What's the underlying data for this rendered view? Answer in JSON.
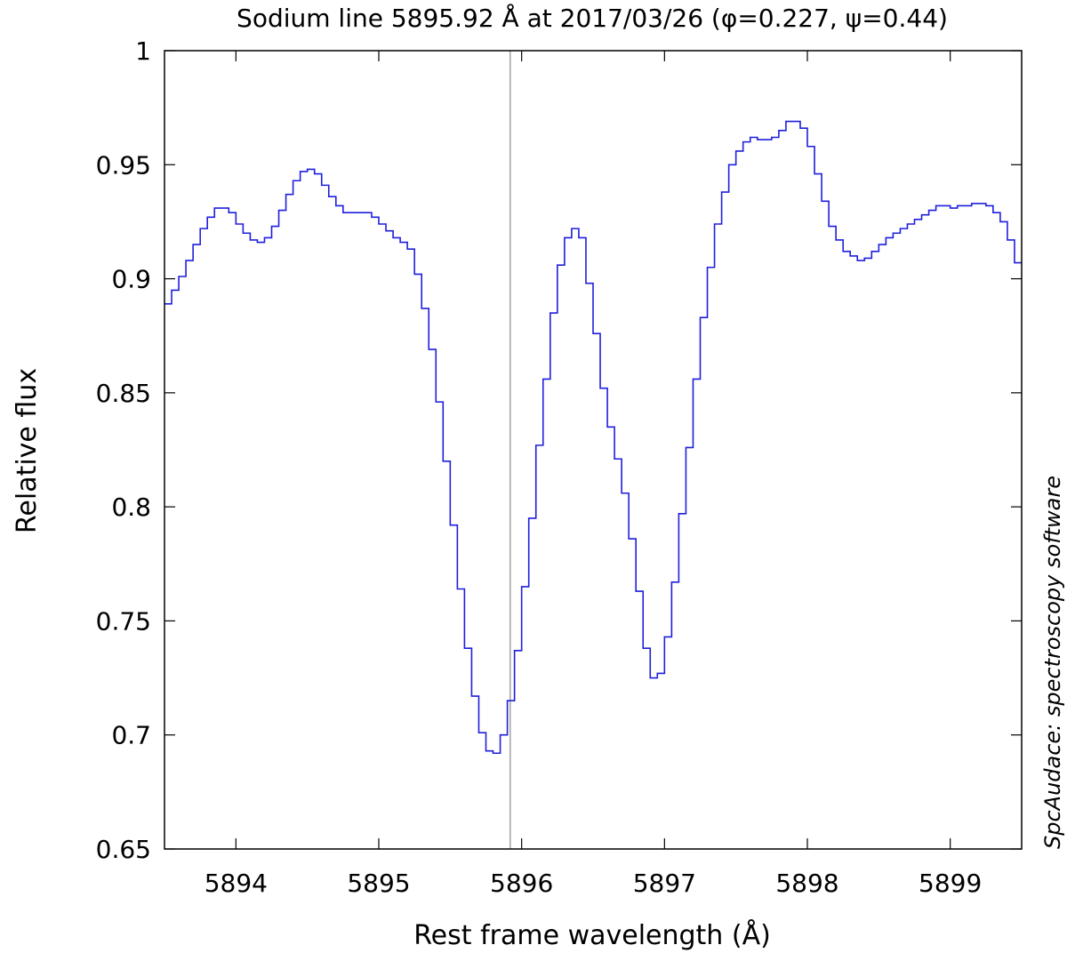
{
  "chart_data": {
    "type": "line",
    "title": "Sodium line 5895.92 Å at 2017/03/26 (φ=0.227, ψ=0.44)",
    "xlabel": "Rest frame wavelength (Å)",
    "ylabel": "Relative flux",
    "side_note": "SpcAudace: spectroscopy software",
    "xlim": [
      5893.5,
      5899.5
    ],
    "ylim": [
      0.65,
      1.0
    ],
    "x_ticks": [
      5894,
      5895,
      5896,
      5897,
      5898,
      5899
    ],
    "x_tick_labels": [
      "5894",
      "5895",
      "5896",
      "5897",
      "5898",
      "5899"
    ],
    "y_ticks": [
      0.65,
      0.7,
      0.75,
      0.8,
      0.85,
      0.9,
      0.95,
      1.0
    ],
    "y_tick_labels": [
      "0.65",
      "0.7",
      "0.75",
      "0.8",
      "0.85",
      "0.9",
      "0.95",
      "1"
    ],
    "reference_line_x": 5895.92,
    "grid": false,
    "legend": "none",
    "step_width": 0.05,
    "series": [
      {
        "color": "#1f1fdd",
        "style": "step",
        "x": [
          5893.5,
          5893.55,
          5893.6,
          5893.65,
          5893.7,
          5893.75,
          5893.8,
          5893.85,
          5893.9,
          5893.95,
          5894.0,
          5894.05,
          5894.1,
          5894.15,
          5894.2,
          5894.25,
          5894.3,
          5894.35,
          5894.4,
          5894.45,
          5894.5,
          5894.55,
          5894.6,
          5894.65,
          5894.7,
          5894.75,
          5894.8,
          5894.85,
          5894.9,
          5894.95,
          5895.0,
          5895.05,
          5895.1,
          5895.15,
          5895.2,
          5895.25,
          5895.3,
          5895.35,
          5895.4,
          5895.45,
          5895.5,
          5895.55,
          5895.6,
          5895.65,
          5895.7,
          5895.75,
          5895.8,
          5895.85,
          5895.9,
          5895.95,
          5896.0,
          5896.05,
          5896.1,
          5896.15,
          5896.2,
          5896.25,
          5896.3,
          5896.35,
          5896.4,
          5896.45,
          5896.5,
          5896.55,
          5896.6,
          5896.65,
          5896.7,
          5896.75,
          5896.8,
          5896.85,
          5896.9,
          5896.95,
          5897.0,
          5897.05,
          5897.1,
          5897.15,
          5897.2,
          5897.25,
          5897.3,
          5897.35,
          5897.4,
          5897.45,
          5897.5,
          5897.55,
          5897.6,
          5897.65,
          5897.7,
          5897.75,
          5897.8,
          5897.85,
          5897.9,
          5897.95,
          5898.0,
          5898.05,
          5898.1,
          5898.15,
          5898.2,
          5898.25,
          5898.3,
          5898.35,
          5898.4,
          5898.45,
          5898.5,
          5898.55,
          5898.6,
          5898.65,
          5898.7,
          5898.75,
          5898.8,
          5898.85,
          5898.9,
          5898.95,
          5899.0,
          5899.05,
          5899.1,
          5899.15,
          5899.2,
          5899.25,
          5899.3,
          5899.35,
          5899.4,
          5899.45
        ],
        "y": [
          0.889,
          0.895,
          0.901,
          0.908,
          0.915,
          0.922,
          0.927,
          0.931,
          0.931,
          0.929,
          0.924,
          0.92,
          0.917,
          0.916,
          0.918,
          0.923,
          0.93,
          0.937,
          0.943,
          0.947,
          0.948,
          0.946,
          0.941,
          0.936,
          0.932,
          0.929,
          0.929,
          0.929,
          0.929,
          0.927,
          0.924,
          0.921,
          0.918,
          0.916,
          0.913,
          0.902,
          0.887,
          0.869,
          0.846,
          0.82,
          0.792,
          0.764,
          0.738,
          0.717,
          0.701,
          0.693,
          0.692,
          0.7,
          0.715,
          0.737,
          0.765,
          0.795,
          0.827,
          0.856,
          0.885,
          0.906,
          0.918,
          0.922,
          0.918,
          0.898,
          0.876,
          0.852,
          0.835,
          0.821,
          0.806,
          0.786,
          0.763,
          0.738,
          0.725,
          0.727,
          0.743,
          0.767,
          0.797,
          0.826,
          0.856,
          0.883,
          0.905,
          0.924,
          0.938,
          0.95,
          0.956,
          0.96,
          0.962,
          0.961,
          0.961,
          0.962,
          0.965,
          0.969,
          0.969,
          0.966,
          0.958,
          0.946,
          0.934,
          0.923,
          0.917,
          0.912,
          0.91,
          0.908,
          0.909,
          0.912,
          0.915,
          0.918,
          0.92,
          0.922,
          0.924,
          0.926,
          0.928,
          0.93,
          0.932,
          0.932,
          0.931,
          0.932,
          0.932,
          0.933,
          0.933,
          0.932,
          0.929,
          0.925,
          0.917,
          0.907
        ]
      }
    ]
  }
}
